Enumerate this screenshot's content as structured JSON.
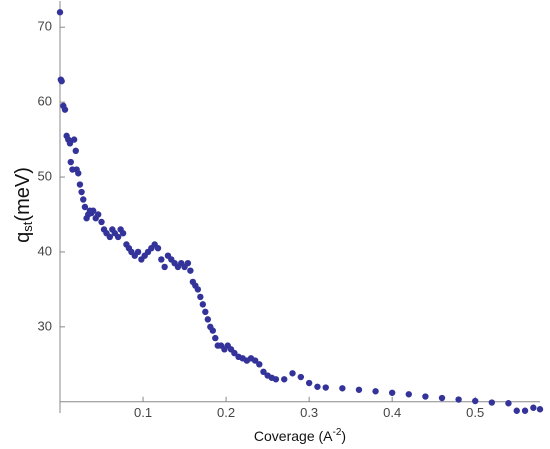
{
  "chart_data": {
    "type": "scatter",
    "ylabel": {
      "main": "q",
      "sub": "st",
      "unit": "(meV)"
    },
    "xlabel": {
      "text": "Coverage (A",
      "sup": "-2",
      "end": ")"
    },
    "color": "#33339a",
    "xlim": [
      0,
      0.578
    ],
    "ylim": [
      18.5,
      73.5
    ],
    "x_axis_at": 20,
    "xticks": [
      0.1,
      0.2,
      0.3,
      0.4,
      0.5
    ],
    "yticks": [
      30,
      40,
      50,
      60,
      70
    ],
    "x": [
      0.0,
      0.001,
      0.002,
      0.004,
      0.006,
      0.008,
      0.01,
      0.012,
      0.013,
      0.015,
      0.017,
      0.019,
      0.02,
      0.022,
      0.024,
      0.026,
      0.028,
      0.03,
      0.032,
      0.034,
      0.036,
      0.038,
      0.04,
      0.043,
      0.046,
      0.05,
      0.053,
      0.056,
      0.06,
      0.063,
      0.066,
      0.07,
      0.073,
      0.076,
      0.08,
      0.083,
      0.086,
      0.09,
      0.094,
      0.098,
      0.102,
      0.106,
      0.11,
      0.114,
      0.118,
      0.122,
      0.126,
      0.13,
      0.134,
      0.138,
      0.142,
      0.146,
      0.15,
      0.154,
      0.157,
      0.16,
      0.163,
      0.166,
      0.169,
      0.172,
      0.175,
      0.178,
      0.181,
      0.184,
      0.187,
      0.19,
      0.194,
      0.198,
      0.202,
      0.206,
      0.21,
      0.215,
      0.22,
      0.225,
      0.23,
      0.235,
      0.24,
      0.245,
      0.25,
      0.255,
      0.26,
      0.27,
      0.28,
      0.29,
      0.3,
      0.31,
      0.32,
      0.34,
      0.36,
      0.38,
      0.4,
      0.42,
      0.44,
      0.46,
      0.48,
      0.5,
      0.52,
      0.54,
      0.55,
      0.56,
      0.57,
      0.578
    ],
    "values": [
      72,
      63,
      62.8,
      59.5,
      59,
      55.5,
      55,
      54.5,
      52,
      51,
      55,
      53.5,
      51,
      50.5,
      49,
      48,
      47,
      46,
      44.5,
      45,
      45.5,
      45.2,
      45.5,
      44.5,
      45,
      44,
      43,
      42.5,
      42,
      43,
      42.5,
      42,
      43,
      42.5,
      41,
      40.5,
      40,
      39.5,
      40,
      39,
      39.5,
      40,
      40.5,
      41,
      40.5,
      39,
      38,
      39.5,
      39,
      38.5,
      38,
      38.5,
      38,
      38.5,
      37.5,
      36,
      35.5,
      35,
      34,
      33,
      32,
      31,
      30,
      29.5,
      28.5,
      27.5,
      27.5,
      27,
      27.5,
      27,
      26.5,
      26,
      25.8,
      25.5,
      25.8,
      25.5,
      25,
      24,
      23.5,
      23.2,
      23,
      23,
      23.8,
      23.3,
      22.5,
      22,
      21.9,
      21.8,
      21.6,
      21.4,
      21.2,
      21,
      20.7,
      20.5,
      20.3,
      20.1,
      19.9,
      19.8,
      18.8,
      18.8,
      19.2,
      19
    ]
  }
}
